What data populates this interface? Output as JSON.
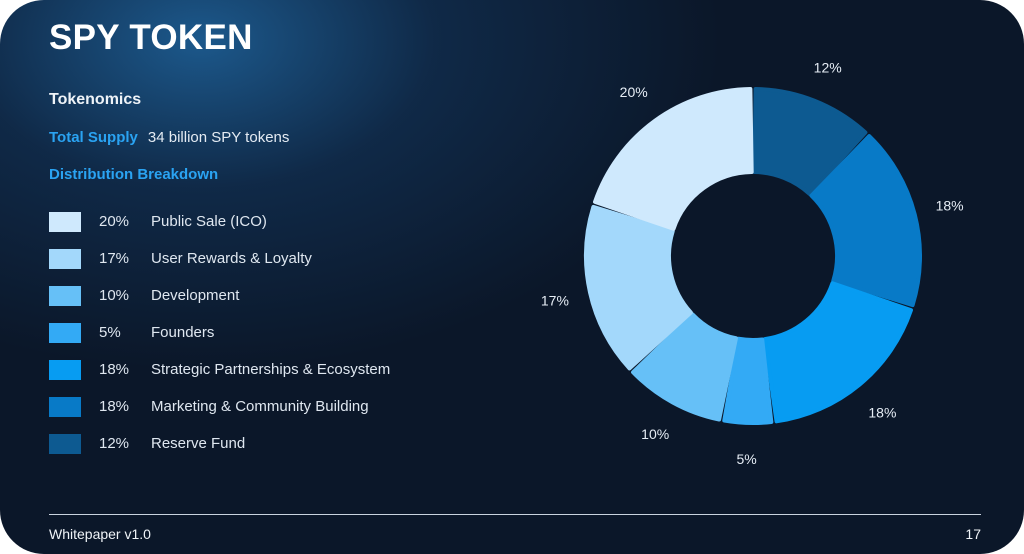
{
  "title": "SPY TOKEN",
  "section_heading": "Tokenomics",
  "supply": {
    "label": "Total Supply",
    "value": "34 billion SPY tokens"
  },
  "distribution_heading": "Distribution Breakdown",
  "footer": {
    "left": "Whitepaper v1.0",
    "page": "17"
  },
  "chart_data": {
    "type": "pie",
    "variant": "donut",
    "title": "Distribution Breakdown",
    "start": "12 o'clock, clockwise",
    "slices": [
      {
        "label": "Reserve Fund",
        "value": 12,
        "value_label": "12%",
        "color": "#0d5a91"
      },
      {
        "label": "Marketing & Community Building",
        "value": 18,
        "value_label": "18%",
        "color": "#087ac7"
      },
      {
        "label": "Strategic Partnerships & Ecosystem",
        "value": 18,
        "value_label": "18%",
        "color": "#079cf2"
      },
      {
        "label": "Founders",
        "value": 5,
        "value_label": "5%",
        "color": "#33aaf5"
      },
      {
        "label": "Development",
        "value": 10,
        "value_label": "10%",
        "color": "#66c0f7"
      },
      {
        "label": "User Rewards & Loyalty",
        "value": 17,
        "value_label": "17%",
        "color": "#a3d8fb"
      },
      {
        "label": "Public Sale (ICO)",
        "value": 20,
        "value_label": "20%",
        "color": "#cfe9fd"
      }
    ],
    "legend": [
      {
        "pct": "20%",
        "label": "Public Sale (ICO)",
        "color": "#cfe9fd"
      },
      {
        "pct": "17%",
        "label": "User Rewards & Loyalty",
        "color": "#a3d8fb"
      },
      {
        "pct": "10%",
        "label": "Development",
        "color": "#66c0f7"
      },
      {
        "pct": "5%",
        "label": "Founders",
        "color": "#33aaf5"
      },
      {
        "pct": "18%",
        "label": "Strategic Partnerships & Ecosystem",
        "color": "#079cf2"
      },
      {
        "pct": "18%",
        "label": "Marketing & Community Building",
        "color": "#087ac7"
      },
      {
        "pct": "12%",
        "label": "Reserve Fund",
        "color": "#0d5a91"
      }
    ]
  }
}
